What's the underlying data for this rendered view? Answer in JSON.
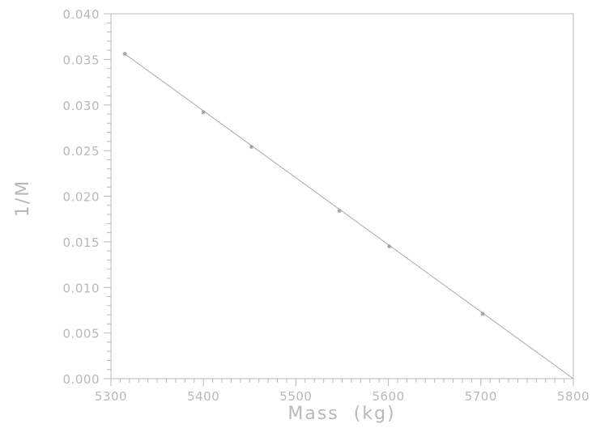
{
  "chart_data": {
    "type": "scatter",
    "title": "",
    "xlabel": "Mass  (kg)",
    "ylabel": "1/M",
    "xlim": [
      5300,
      5800
    ],
    "ylim": [
      0.0,
      0.04
    ],
    "x_ticks": [
      "5300",
      "5400",
      "5500",
      "5600",
      "5700",
      "5800"
    ],
    "y_ticks": [
      "0.000",
      "0.005",
      "0.010",
      "0.015",
      "0.020",
      "0.025",
      "0.030",
      "0.035",
      "0.040"
    ],
    "grid": false,
    "legend": "none",
    "series": [
      {
        "marker": "asterisk",
        "x": [
          5315,
          5400,
          5452,
          5547,
          5601,
          5702
        ],
        "y": [
          0.0356,
          0.0292,
          0.0254,
          0.0184,
          0.0145,
          0.0071
        ]
      }
    ],
    "fit_line": {
      "x": [
        5315,
        5800
      ],
      "y": [
        0.0356,
        0.0
      ]
    },
    "colors": {
      "axes": "#b8b8b8",
      "line": "#a8a8a8",
      "marker": "#a0a0a0",
      "text": "#b8b8b8"
    }
  }
}
